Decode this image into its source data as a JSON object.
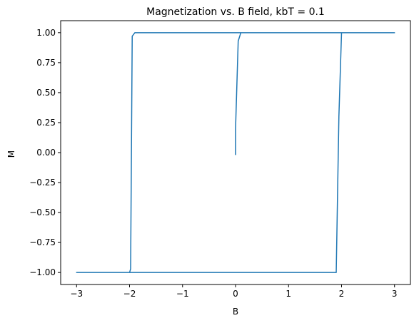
{
  "chart_data": {
    "type": "line",
    "title": "Magnetization vs. B field, kbT = 0.1",
    "xlabel": "B",
    "ylabel": "M",
    "xlim": [
      -3.3,
      3.3
    ],
    "ylim": [
      -1.1,
      1.1
    ],
    "xticks": [
      -3,
      -2,
      -1,
      0,
      1,
      2,
      3
    ],
    "xtick_labels": [
      "−3",
      "−2",
      "−1",
      "0",
      "1",
      "2",
      "3"
    ],
    "yticks": [
      -1.0,
      -0.75,
      -0.5,
      -0.25,
      0.0,
      0.25,
      0.5,
      0.75,
      1.0
    ],
    "ytick_labels": [
      "−1.00",
      "−0.75",
      "−0.50",
      "−0.25",
      "0.00",
      "0.25",
      "0.50",
      "0.75",
      "1.00"
    ],
    "grid": false,
    "legend": "none",
    "series": [
      {
        "color": "#1f77b4",
        "x": [
          0.0,
          0.0,
          0.05,
          0.1,
          0.2,
          3.0,
          2.0,
          1.95,
          1.9,
          1.9,
          -3.0,
          -2.0,
          -1.98,
          -1.95,
          -1.9,
          -1.8,
          3.0
        ],
        "y": [
          -0.02,
          0.2,
          0.93,
          1.0,
          1.0,
          1.0,
          1.0,
          0.3,
          -0.99,
          -1.0,
          -1.0,
          -1.0,
          -0.97,
          0.97,
          1.0,
          1.0,
          1.0
        ]
      }
    ]
  }
}
